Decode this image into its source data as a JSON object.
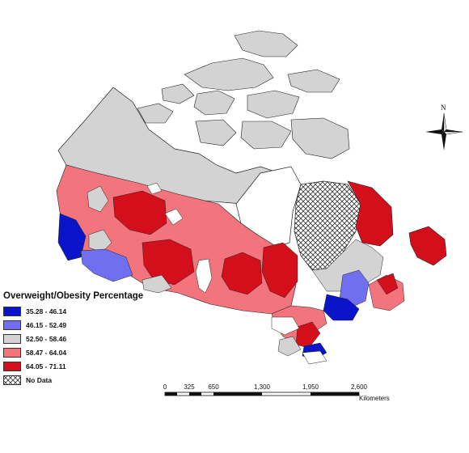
{
  "legend": {
    "title": "Overweight/Obesity Percentage",
    "classes": [
      {
        "label": "35.28 - 46.14",
        "color": "#0a14c8"
      },
      {
        "label": "46.15 - 52.49",
        "color": "#6f6ff0"
      },
      {
        "label": "52.50 - 58.46",
        "color": "#d3d3d3"
      },
      {
        "label": "58.47 - 64.04",
        "color": "#f2757d"
      },
      {
        "label": "64.05 - 71.11",
        "color": "#d40f1c"
      },
      {
        "label": "No Data",
        "color": "hatch"
      }
    ]
  },
  "scale": {
    "ticks": [
      "0",
      "325",
      "650",
      "1,300",
      "1,950",
      "2,600"
    ],
    "units": "Kilometers"
  },
  "north_arrow": {
    "label": "N"
  }
}
